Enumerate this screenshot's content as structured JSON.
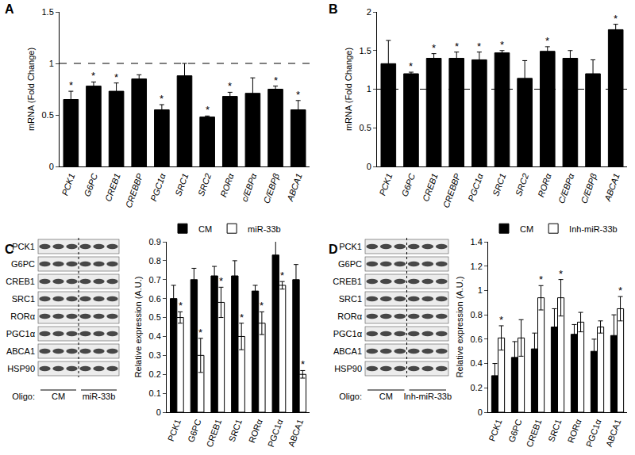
{
  "chart_data": [
    {
      "type": "bar",
      "panel_label": "A",
      "y_label": "mRNA (Fold Change)",
      "categories": [
        "PCK1",
        "G6PC",
        "CREB1",
        "CREBBP",
        "PGC1α",
        "SRC1",
        "SRC2",
        "RORα",
        "c/EBPα",
        "C/EBPβ",
        "ABCA1"
      ],
      "values": [
        0.65,
        0.78,
        0.73,
        0.85,
        0.55,
        0.88,
        0.48,
        0.68,
        0.71,
        0.75,
        0.55
      ],
      "errors": [
        0.08,
        0.04,
        0.08,
        0.04,
        0.05,
        0.12,
        0.01,
        0.04,
        0.15,
        0.03,
        0.09
      ],
      "significance": [
        "*",
        "*",
        "*",
        null,
        "*",
        null,
        "*",
        "*",
        null,
        "*",
        "*"
      ],
      "color": "#000000",
      "ylim": [
        0,
        1.5
      ],
      "yticks": [
        0,
        0.5,
        1,
        1.5
      ],
      "reference_line": 1,
      "grid": false
    },
    {
      "type": "bar",
      "panel_label": "B",
      "y_label": "mRNA (Fold Change)",
      "categories": [
        "PCK1",
        "G6PC",
        "CREB1",
        "CREBBP",
        "PGC1α",
        "SRC1",
        "SRC2",
        "RORα",
        "C/EBPα",
        "C/EBPβ",
        "ABCA1"
      ],
      "values": [
        1.33,
        1.2,
        1.4,
        1.4,
        1.38,
        1.47,
        1.14,
        1.49,
        1.4,
        1.2,
        1.77
      ],
      "errors": [
        0.3,
        0.02,
        0.06,
        0.08,
        0.1,
        0.03,
        0.23,
        0.06,
        0.1,
        0.18,
        0.07
      ],
      "significance": [
        null,
        "*",
        "*",
        "*",
        "*",
        "*",
        null,
        "*",
        null,
        null,
        "*"
      ],
      "color": "#000000",
      "ylim": [
        0,
        2
      ],
      "yticks": [
        0,
        0.5,
        1,
        1.5,
        2
      ],
      "reference_line": 1,
      "grid": false
    },
    {
      "type": "bar",
      "panel_label": "C",
      "y_label": "Relative expression (A.U.)",
      "categories": [
        "PCK1",
        "G6PC",
        "CREB1",
        "SRC1",
        "RORα",
        "PGC1α",
        "ABCA1"
      ],
      "series": [
        {
          "name": "CM",
          "color": "#000000",
          "values": [
            0.6,
            0.7,
            0.72,
            0.72,
            0.64,
            0.83,
            0.7
          ],
          "errors": [
            0.07,
            0.06,
            0.05,
            0.08,
            0.03,
            0.09,
            0.08
          ],
          "significance": [
            null,
            null,
            null,
            null,
            null,
            null,
            null
          ]
        },
        {
          "name": "miR-33b",
          "color": "#ffffff",
          "values": [
            0.5,
            0.3,
            0.58,
            0.4,
            0.47,
            0.67,
            0.2
          ],
          "errors": [
            0.03,
            0.09,
            0.08,
            0.07,
            0.06,
            0.02,
            0.02
          ],
          "significance": [
            "*",
            "*",
            "*",
            "*",
            "*",
            "*",
            "*"
          ]
        }
      ],
      "ylim": [
        0,
        0.9
      ],
      "yticks": [
        0,
        0.1,
        0.2,
        0.3,
        0.4,
        0.5,
        0.6,
        0.7,
        0.8,
        0.9
      ],
      "legend": "upper left",
      "grid": false
    },
    {
      "type": "bar",
      "panel_label": "D",
      "y_label": "Relative expression (A.U.)",
      "categories": [
        "PCK1",
        "G6PC",
        "CREB1",
        "SRC1",
        "RORα",
        "PGC1α",
        "ABCA1"
      ],
      "series": [
        {
          "name": "CM",
          "color": "#000000",
          "values": [
            0.3,
            0.45,
            0.52,
            0.7,
            0.64,
            0.5,
            0.63
          ],
          "errors": [
            0.1,
            0.13,
            0.13,
            0.15,
            0.08,
            0.1,
            0.17
          ],
          "significance": [
            null,
            null,
            null,
            null,
            null,
            null,
            null
          ]
        },
        {
          "name": "Inh-miR-33b",
          "color": "#ffffff",
          "values": [
            0.61,
            0.61,
            0.94,
            0.94,
            0.74,
            0.7,
            0.85
          ],
          "errors": [
            0.1,
            0.15,
            0.1,
            0.15,
            0.08,
            0.05,
            0.1
          ],
          "significance": [
            "*",
            null,
            "*",
            "*",
            null,
            null,
            "*"
          ]
        }
      ],
      "ylim": [
        0,
        1.4
      ],
      "yticks": [
        0,
        0.2,
        0.4,
        0.6,
        0.8,
        1,
        1.2,
        1.4
      ],
      "legend": "upper left",
      "grid": false
    }
  ],
  "blots": [
    {
      "panel": "C",
      "proteins": [
        "PCK1",
        "G6PC",
        "CREB1",
        "SRC1",
        "RORα",
        "PGC1α",
        "ABCA1",
        "HSP90"
      ],
      "oligo_label": "Oligo:",
      "groups": [
        "CM",
        "miR-33b"
      ]
    },
    {
      "panel": "D",
      "proteins": [
        "PCK1",
        "G6PC",
        "CREB1",
        "SRC1",
        "RORα",
        "PGC1α",
        "ABCA1",
        "HSP90"
      ],
      "oligo_label": "Oligo:",
      "groups": [
        "CM",
        "Inh-miR-33b"
      ]
    }
  ]
}
